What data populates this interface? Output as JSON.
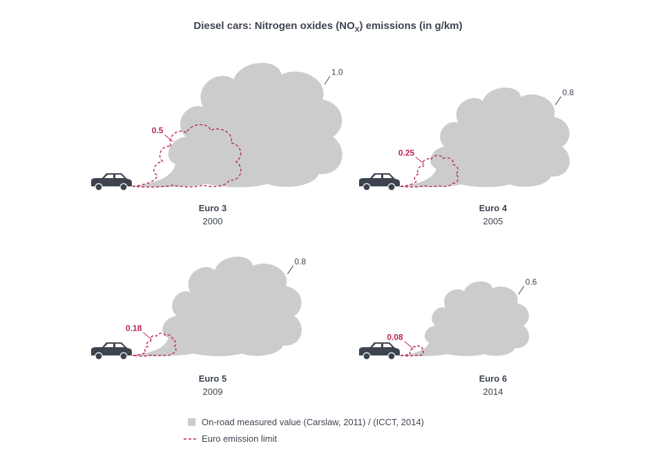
{
  "chart_data": {
    "type": "area",
    "title_main": "Diesel cars: Nitrogen oxides (NO",
    "title_sub": "X",
    "title_end": ") emissions (in g/km)",
    "panels": [
      {
        "standard": "Euro 3",
        "year": "2000",
        "on_road": 1.0,
        "on_road_label": "1.0",
        "limit": 0.5,
        "limit_label": "0.5"
      },
      {
        "standard": "Euro 4",
        "year": "2005",
        "on_road": 0.8,
        "on_road_label": "0.8",
        "limit": 0.25,
        "limit_label": "0.25"
      },
      {
        "standard": "Euro 5",
        "year": "2009",
        "on_road": 0.8,
        "on_road_label": "0.8",
        "limit": 0.18,
        "limit_label": "0.18"
      },
      {
        "standard": "Euro 6",
        "year": "2014",
        "on_road": 0.6,
        "on_road_label": "0.6",
        "limit": 0.08,
        "limit_label": "0.08"
      }
    ],
    "legend": [
      {
        "label": "On-road measured value (Carslaw, 2011) / (ICCT, 2014)",
        "color": "#cccccc",
        "style": "filled"
      },
      {
        "label": "Euro emission limit",
        "color": "#b9244f",
        "style": "dashed"
      }
    ]
  }
}
